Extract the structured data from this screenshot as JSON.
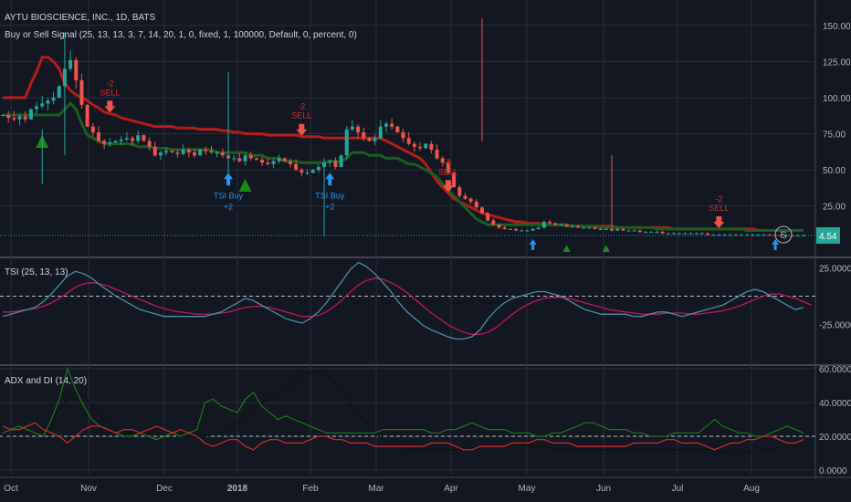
{
  "header": {
    "title": "AYTU BIOSCIENCE, INC., 1D, BATS",
    "indicator": "Buy or Sell Signal (25, 13, 13, 3, 7, 14, 20, 1, 0, fixed, 1, 100000, Default, 0, percent, 0)"
  },
  "colors": {
    "background": "#131722",
    "grid": "#2a2e39",
    "up": "#26a69a",
    "down": "#ef5350",
    "resistance": "#b71c1c",
    "support": "#1b5e20",
    "tsi_line": "#4a90a8",
    "tsi_signal": "#c2185b",
    "adx": "#111111",
    "di_plus": "#1e7a1e",
    "di_minus": "#d32f2f",
    "buy_arrow": "#2196f3",
    "sell_text": "#d32f2f",
    "triangle": "#1b8a1b"
  },
  "chart_data": [
    {
      "type": "candlestick",
      "title": "AYTU BIOSCIENCE, INC., 1D, BATS",
      "x_ticks": [
        "Oct",
        "Nov",
        "Dec",
        "2018",
        "Feb",
        "Mar",
        "Apr",
        "May",
        "Jun",
        "Jul",
        "Aug"
      ],
      "y_ticks": [
        "150.00",
        "125.00",
        "100.00",
        "75.00",
        "50.00",
        "25.00"
      ],
      "ylim": [
        0,
        160
      ],
      "last_price": "4.54",
      "price_label_color": "#26a69a",
      "close_series_approx": [
        88,
        86,
        85,
        87,
        85,
        92,
        94,
        96,
        98,
        100,
        108,
        120,
        126,
        112,
        95,
        80,
        76,
        70,
        68,
        69,
        70,
        71,
        72,
        70,
        74,
        70,
        66,
        60,
        62,
        63,
        62,
        61,
        64,
        62,
        60,
        64,
        63,
        62,
        62,
        60,
        58,
        58,
        56,
        60,
        58,
        57,
        55,
        54,
        56,
        58,
        56,
        54,
        50,
        48,
        48,
        50,
        52,
        55,
        56,
        52,
        60,
        78,
        80,
        76,
        72,
        70,
        72,
        80,
        82,
        80,
        76,
        72,
        68,
        66,
        65,
        68,
        64,
        58,
        55,
        48,
        38,
        32,
        30,
        28,
        24,
        20,
        15,
        12,
        10,
        9,
        9,
        8,
        8,
        8,
        9,
        10,
        14,
        13,
        12,
        12,
        11,
        11,
        10,
        10,
        10,
        9,
        9,
        9,
        8,
        9,
        8,
        8,
        8,
        7,
        7,
        7,
        7,
        6,
        6,
        6,
        6,
        6,
        6,
        6,
        6,
        5,
        5,
        5,
        5,
        5,
        5,
        5,
        5,
        5,
        5,
        5,
        4.8,
        4.7,
        4.6,
        4.6,
        4.5,
        4.5,
        4.54
      ],
      "resistance_series_approx": [
        100,
        100,
        100,
        100,
        100,
        110,
        118,
        128,
        128,
        125,
        120,
        110,
        105,
        102,
        100,
        98,
        95,
        93,
        90,
        89,
        88,
        86,
        85,
        84,
        83,
        82,
        81,
        80,
        80,
        80,
        80,
        79,
        79,
        79,
        79,
        78,
        78,
        78,
        78,
        77,
        77,
        76,
        76,
        75,
        75,
        75,
        75,
        74,
        74,
        74,
        74,
        74,
        74,
        73,
        73,
        73,
        73,
        72,
        72,
        72,
        72,
        72,
        72,
        72,
        72,
        72,
        72,
        72,
        70,
        68,
        66,
        64,
        62,
        60,
        58,
        54,
        48,
        42,
        38,
        34,
        30,
        28,
        26,
        24,
        22,
        20,
        19,
        18,
        17,
        16,
        15,
        14,
        14,
        13,
        13,
        13,
        12,
        12,
        12,
        12,
        12,
        11,
        11,
        11,
        11,
        11,
        11,
        11,
        11,
        10,
        10,
        10,
        10,
        10,
        10,
        10,
        10,
        10,
        10,
        9,
        9,
        9,
        9,
        9,
        9,
        9,
        9,
        9,
        9,
        9,
        9,
        9,
        9,
        9,
        8,
        8,
        8,
        8,
        8,
        8,
        8,
        8
      ],
      "support_series_approx": [
        88,
        88,
        88,
        88,
        88,
        88,
        88,
        88,
        88,
        88,
        88,
        92,
        96,
        92,
        82,
        74,
        72,
        70,
        68,
        68,
        68,
        68,
        68,
        68,
        66,
        66,
        66,
        65,
        65,
        65,
        64,
        64,
        64,
        64,
        64,
        64,
        64,
        64,
        62,
        62,
        62,
        62,
        62,
        62,
        60,
        60,
        60,
        58,
        58,
        58,
        56,
        56,
        56,
        55,
        55,
        55,
        55,
        55,
        56,
        56,
        56,
        58,
        62,
        62,
        62,
        60,
        60,
        60,
        58,
        58,
        58,
        56,
        54,
        54,
        52,
        50,
        48,
        45,
        40,
        36,
        32,
        28,
        24,
        20,
        16,
        14,
        12,
        12,
        12,
        12,
        12,
        12,
        12,
        12,
        12,
        12,
        12,
        12,
        12,
        12,
        11,
        11,
        11,
        11,
        11,
        11,
        10,
        10,
        10,
        10,
        10,
        10,
        10,
        10,
        10,
        10,
        9,
        9,
        9,
        9,
        9,
        9,
        9,
        9,
        9,
        9,
        9,
        9,
        9,
        9,
        9,
        9,
        8,
        8,
        8,
        8,
        8,
        8,
        8,
        8,
        8,
        8,
        8
      ],
      "sell_signals": [
        {
          "label_top": "-2",
          "label": "SELL",
          "index": 19
        },
        {
          "label_top": "-2",
          "label": "SELL",
          "index": 53
        },
        {
          "label_top": "-2",
          "label": "SELL",
          "index": 79
        },
        {
          "label_top": "-2",
          "label": "SELL",
          "index": 127
        },
        {
          "label_top": "-2",
          "label": "SELL",
          "index": 155
        },
        {
          "label_top": "-2",
          "label": "SELL",
          "index": 187
        }
      ],
      "buy_signals": [
        {
          "label": "TSI Buy",
          "sub": "+2",
          "index": 40
        },
        {
          "label": "TSI Buy",
          "sub": "+2",
          "index": 58
        }
      ]
    },
    {
      "type": "line",
      "title": "TSI (25, 13, 13)",
      "y_ticks": [
        "25.0000",
        "-25.0000"
      ],
      "ylim": [
        -45,
        32
      ],
      "series": [
        {
          "values": [
            -18,
            -16,
            -14,
            -12,
            -10,
            -5,
            2,
            10,
            18,
            22,
            20,
            16,
            10,
            5,
            0,
            -4,
            -8,
            -12,
            -14,
            -16,
            -18,
            -18,
            -18,
            -18,
            -18,
            -18,
            -16,
            -14,
            -10,
            -6,
            -2,
            -4,
            -8,
            -12,
            -16,
            -20,
            -22,
            -24,
            -20,
            -14,
            -6,
            4,
            14,
            24,
            30,
            26,
            20,
            12,
            4,
            -6,
            -14,
            -20,
            -26,
            -30,
            -33,
            -36,
            -38,
            -38,
            -36,
            -30,
            -20,
            -12,
            -6,
            -2,
            0,
            2,
            4,
            4,
            2,
            0,
            -4,
            -8,
            -12,
            -14,
            -16,
            -16,
            -16,
            -16,
            -18,
            -18,
            -16,
            -14,
            -14,
            -16,
            -18,
            -16,
            -14,
            -12,
            -10,
            -8,
            -4,
            0,
            4,
            6,
            4,
            0,
            -4,
            -8,
            -12,
            -10
          ]
        },
        {
          "values": [
            -14,
            -14,
            -13,
            -12,
            -11,
            -9,
            -6,
            -2,
            3,
            8,
            11,
            12,
            11,
            9,
            6,
            3,
            0,
            -3,
            -6,
            -9,
            -11,
            -13,
            -14,
            -15,
            -16,
            -16,
            -16,
            -15,
            -14,
            -12,
            -10,
            -9,
            -9,
            -10,
            -12,
            -14,
            -16,
            -18,
            -18,
            -17,
            -14,
            -9,
            -3,
            4,
            10,
            14,
            16,
            15,
            12,
            8,
            3,
            -3,
            -9,
            -15,
            -20,
            -25,
            -29,
            -32,
            -34,
            -34,
            -32,
            -28,
            -22,
            -16,
            -11,
            -7,
            -4,
            -2,
            -1,
            -1,
            -2,
            -4,
            -6,
            -8,
            -10,
            -12,
            -13,
            -14,
            -15,
            -16,
            -16,
            -16,
            -15,
            -15,
            -15,
            -16,
            -16,
            -15,
            -14,
            -13,
            -11,
            -9,
            -6,
            -3,
            0,
            2,
            2,
            0,
            -2,
            -5,
            -8
          ]
        }
      ],
      "dashed_level": 0
    },
    {
      "type": "line",
      "title": "ADX and DI (14, 20)",
      "y_ticks": [
        "60.0000",
        "40.0000",
        "20.0000",
        "0.0000"
      ],
      "ylim": [
        0,
        62
      ],
      "series": [
        {
          "values": [
            20,
            21,
            22,
            22,
            22,
            24,
            30,
            36,
            42,
            46,
            44,
            38,
            32,
            28,
            24,
            22,
            22,
            22,
            22,
            22,
            21,
            21,
            20,
            20,
            20,
            20,
            21,
            22,
            24,
            28,
            34,
            38,
            40,
            42,
            44,
            48,
            52,
            56,
            58,
            58,
            56,
            52,
            46,
            40,
            34,
            28,
            22,
            18,
            16,
            14,
            12,
            12,
            12,
            12,
            12,
            12,
            12,
            13,
            13,
            14,
            14,
            14,
            14,
            15,
            15,
            15,
            14,
            14,
            13,
            12,
            12,
            12,
            12,
            12,
            12,
            12,
            12,
            12,
            12,
            12,
            12,
            12,
            12,
            12,
            12,
            12,
            12,
            12,
            12,
            11,
            11,
            11,
            11,
            11,
            12,
            12,
            13,
            14,
            14,
            15
          ]
        },
        {
          "values": [
            22,
            24,
            26,
            24,
            22,
            20,
            30,
            42,
            60,
            48,
            38,
            30,
            26,
            24,
            22,
            20,
            20,
            22,
            20,
            18,
            20,
            22,
            20,
            22,
            24,
            40,
            42,
            38,
            36,
            34,
            42,
            46,
            38,
            34,
            30,
            32,
            30,
            28,
            26,
            24,
            22,
            22,
            22,
            22,
            22,
            22,
            22,
            24,
            24,
            24,
            24,
            24,
            24,
            22,
            22,
            24,
            24,
            26,
            28,
            26,
            24,
            24,
            24,
            22,
            22,
            22,
            20,
            20,
            22,
            22,
            24,
            26,
            28,
            28,
            26,
            24,
            24,
            24,
            22,
            22,
            20,
            20,
            20,
            22,
            22,
            22,
            22,
            26,
            30,
            26,
            24,
            22,
            22,
            20,
            20,
            22,
            24,
            26,
            24,
            22
          ]
        },
        {
          "values": [
            26,
            24,
            24,
            26,
            28,
            24,
            22,
            20,
            16,
            20,
            24,
            26,
            26,
            24,
            22,
            24,
            24,
            22,
            24,
            26,
            24,
            22,
            24,
            22,
            20,
            16,
            14,
            16,
            18,
            18,
            14,
            12,
            16,
            18,
            18,
            16,
            16,
            16,
            18,
            20,
            20,
            18,
            18,
            16,
            16,
            16,
            14,
            14,
            14,
            14,
            14,
            14,
            14,
            16,
            16,
            16,
            14,
            12,
            12,
            14,
            14,
            14,
            14,
            16,
            16,
            16,
            18,
            18,
            16,
            16,
            16,
            14,
            14,
            14,
            14,
            14,
            14,
            14,
            16,
            16,
            16,
            16,
            18,
            18,
            16,
            16,
            16,
            14,
            12,
            14,
            16,
            16,
            18,
            18,
            20,
            20,
            18,
            16,
            16,
            18
          ]
        }
      ],
      "dashed_level": 20
    }
  ]
}
